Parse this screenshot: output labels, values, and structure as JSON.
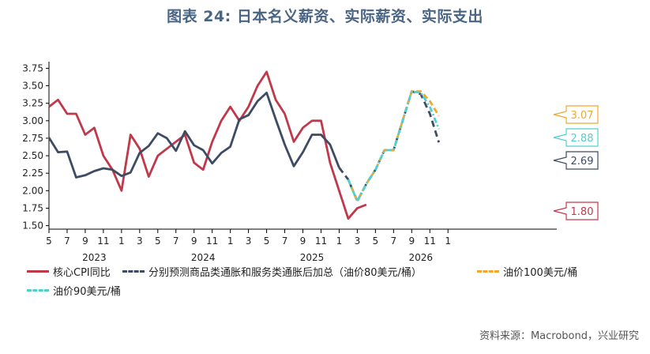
{
  "title": "图表 24: 日本名义薪资、实际薪资、实际支出",
  "source": "资料来源：Macrobond，兴业研究",
  "chart_data": {
    "type": "line",
    "title": "图表 24: 日本名义薪资、实际薪资、实际支出",
    "xlabel": "",
    "ylabel": "",
    "x_range": [
      "2022-05",
      "2027-01"
    ],
    "ylim": [
      1.45,
      3.8
    ],
    "y_ticks": [
      1.5,
      1.75,
      2.0,
      2.25,
      2.5,
      2.75,
      3.0,
      3.25,
      3.5,
      3.75
    ],
    "y_tick_labels": [
      "1.50",
      "1.75",
      "2.00",
      "2.25",
      "2.50",
      "2.75",
      "3.00",
      "3.25",
      "3.50",
      "3.75"
    ],
    "x_ticks": [
      "2022-05",
      "2022-07",
      "2022-09",
      "2022-11",
      "2023-01",
      "2023-03",
      "2023-05",
      "2023-07",
      "2023-09",
      "2023-11",
      "2024-01",
      "2024-03",
      "2024-05",
      "2024-07",
      "2024-09",
      "2024-11",
      "2025-01",
      "2025-03",
      "2025-05",
      "2025-07",
      "2025-09",
      "2025-11",
      "2026-01"
    ],
    "x_tick_labels": [
      "5",
      "7",
      "9",
      "11",
      "1",
      "3",
      "5",
      "7",
      "9",
      "11",
      "1",
      "3",
      "5",
      "7",
      "9",
      "11",
      "1",
      "3",
      "5",
      "7",
      "9",
      "11",
      "1"
    ],
    "year_labels": [
      {
        "text": "2023",
        "x": "2022-10"
      },
      {
        "text": "2024",
        "x": "2023-10"
      },
      {
        "text": "2025",
        "x": "2024-10"
      },
      {
        "text": "2026",
        "x": "2025-10"
      }
    ],
    "grid": false,
    "legend_position": "bottom",
    "series": [
      {
        "name": "核心CPI同比",
        "color": "#c0394b",
        "style": "solid",
        "x": [
          "2022-05",
          "2022-06",
          "2022-07",
          "2022-08",
          "2022-09",
          "2022-10",
          "2022-11",
          "2022-12",
          "2023-01",
          "2023-02",
          "2023-03",
          "2023-04",
          "2023-05",
          "2023-06",
          "2023-07",
          "2023-08",
          "2023-09",
          "2023-10",
          "2023-11",
          "2023-12",
          "2024-01",
          "2024-02",
          "2024-03",
          "2024-04",
          "2024-05",
          "2024-06",
          "2024-07",
          "2024-08",
          "2024-09",
          "2024-10",
          "2024-11",
          "2024-12",
          "2025-01",
          "2025-02",
          "2025-03",
          "2025-04"
        ],
        "values": [
          3.2,
          3.3,
          3.1,
          3.1,
          2.8,
          2.9,
          2.5,
          2.3,
          2.0,
          2.8,
          2.6,
          2.2,
          2.5,
          2.6,
          2.7,
          2.8,
          2.4,
          2.3,
          2.7,
          3.0,
          3.2,
          3.0,
          3.2,
          3.5,
          3.7,
          3.3,
          3.1,
          2.7,
          2.9,
          3.0,
          3.0,
          2.4,
          2.0,
          1.6,
          1.75,
          1.8
        ]
      },
      {
        "name": "分别预测商品类通胀和服务类通胀后加总（油价80美元/桶）",
        "color": "#3d4b63",
        "style": "solid-then-dashed",
        "x": [
          "2022-05",
          "2022-06",
          "2022-07",
          "2022-08",
          "2022-09",
          "2022-10",
          "2022-11",
          "2022-12",
          "2023-01",
          "2023-02",
          "2023-03",
          "2023-04",
          "2023-05",
          "2023-06",
          "2023-07",
          "2023-08",
          "2023-09",
          "2023-10",
          "2023-11",
          "2023-12",
          "2024-01",
          "2024-02",
          "2024-03",
          "2024-04",
          "2024-05",
          "2024-06",
          "2024-07",
          "2024-08",
          "2024-09",
          "2024-10",
          "2024-11",
          "2024-12",
          "2025-01",
          "2025-02",
          "2025-03",
          "2025-04",
          "2025-05",
          "2025-06",
          "2025-07",
          "2025-08",
          "2025-09",
          "2025-10",
          "2025-11",
          "2025-12"
        ],
        "values": [
          2.76,
          2.55,
          2.56,
          2.19,
          2.22,
          2.28,
          2.32,
          2.3,
          2.21,
          2.26,
          2.54,
          2.64,
          2.82,
          2.75,
          2.57,
          2.85,
          2.65,
          2.58,
          2.39,
          2.54,
          2.63,
          3.02,
          3.08,
          3.28,
          3.4,
          3.02,
          2.66,
          2.35,
          2.55,
          2.8,
          2.8,
          2.66,
          2.33,
          2.16,
          1.85,
          2.1,
          2.3,
          2.58,
          2.58,
          3.0,
          3.42,
          3.38,
          3.1,
          2.69
        ],
        "dashed_from": "2025-01"
      },
      {
        "name": "油价100美元/桶",
        "color": "#f0a830",
        "style": "dashed",
        "x": [
          "2025-02",
          "2025-03",
          "2025-04",
          "2025-05",
          "2025-06",
          "2025-07",
          "2025-08",
          "2025-09",
          "2025-10",
          "2025-11",
          "2025-12"
        ],
        "values": [
          2.16,
          1.85,
          2.1,
          2.3,
          2.58,
          2.58,
          3.0,
          3.42,
          3.42,
          3.28,
          3.07
        ]
      },
      {
        "name": "油价90美元/桶",
        "color": "#4fd0d0",
        "style": "dash-dot",
        "x": [
          "2025-02",
          "2025-03",
          "2025-04",
          "2025-05",
          "2025-06",
          "2025-07",
          "2025-08",
          "2025-09",
          "2025-10",
          "2025-11",
          "2025-12"
        ],
        "values": [
          2.16,
          1.85,
          2.1,
          2.3,
          2.58,
          2.58,
          3.0,
          3.42,
          3.4,
          3.2,
          2.88
        ]
      }
    ],
    "callouts": [
      {
        "text": "3.07",
        "value": 3.07,
        "color": "#f0a830",
        "series": "油价100美元/桶"
      },
      {
        "text": "2.88",
        "value": 2.88,
        "color": "#4fd0d0",
        "series": "油价90美元/桶"
      },
      {
        "text": "2.69",
        "value": 2.69,
        "color": "#3d4b63",
        "series": "分别预测商品类通胀和服务类通胀后加总（油价80美元/桶）"
      },
      {
        "text": "1.80",
        "value": 1.8,
        "color": "#c0394b",
        "series": "核心CPI同比"
      }
    ]
  }
}
